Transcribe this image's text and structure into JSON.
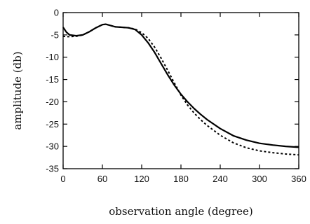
{
  "chart_data": {
    "type": "line",
    "title": "",
    "xlabel": "observation angle (degree)",
    "ylabel": "amplitude (db)",
    "xlim": [
      0,
      360
    ],
    "ylim": [
      -35,
      0
    ],
    "xticks": [
      0,
      60,
      120,
      180,
      240,
      300,
      360
    ],
    "yticks": [
      0,
      -5,
      -10,
      -15,
      -20,
      -25,
      -30,
      -35
    ],
    "grid": false,
    "legend": "none",
    "series": [
      {
        "style": "solid",
        "color": "#000000",
        "x": [
          0,
          5,
          10,
          20,
          30,
          40,
          50,
          60,
          65,
          70,
          80,
          90,
          100,
          110,
          120,
          130,
          140,
          150,
          160,
          170,
          180,
          190,
          200,
          210,
          220,
          240,
          260,
          280,
          300,
          320,
          340,
          360
        ],
        "y": [
          -3.3,
          -4.4,
          -5.0,
          -5.2,
          -5.0,
          -4.3,
          -3.4,
          -2.7,
          -2.6,
          -2.8,
          -3.2,
          -3.3,
          -3.4,
          -3.8,
          -5.0,
          -6.8,
          -9.0,
          -11.5,
          -14.0,
          -16.3,
          -18.3,
          -20.0,
          -21.5,
          -22.8,
          -24.0,
          -26.0,
          -27.6,
          -28.6,
          -29.3,
          -29.7,
          -30.0,
          -30.2
        ]
      },
      {
        "style": "dashed",
        "color": "#000000",
        "x": [
          0,
          5,
          10,
          20,
          30,
          40,
          50,
          60,
          65,
          70,
          80,
          90,
          100,
          110,
          120,
          130,
          140,
          150,
          160,
          170,
          180,
          190,
          200,
          210,
          220,
          240,
          260,
          280,
          300,
          320,
          340,
          360
        ],
        "y": [
          -5.3,
          -5.4,
          -5.4,
          -5.3,
          -5.0,
          -4.3,
          -3.4,
          -2.7,
          -2.6,
          -2.8,
          -3.2,
          -3.3,
          -3.4,
          -3.7,
          -4.5,
          -5.8,
          -7.8,
          -10.3,
          -13.0,
          -15.8,
          -18.5,
          -20.7,
          -22.5,
          -24.0,
          -25.3,
          -27.5,
          -29.2,
          -30.3,
          -31.0,
          -31.4,
          -31.7,
          -31.9
        ]
      }
    ]
  }
}
